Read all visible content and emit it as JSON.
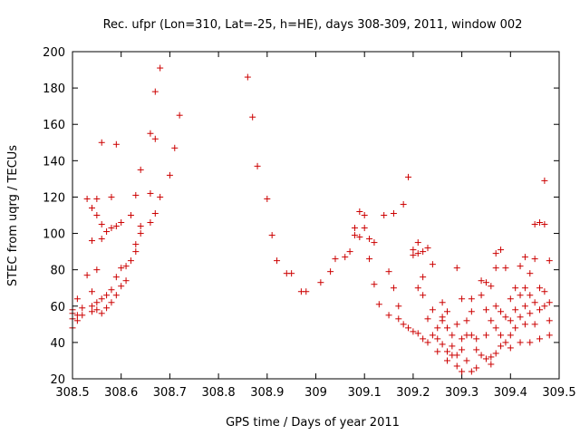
{
  "chart_data": {
    "type": "scatter",
    "title": "Rec. ufpr (Lon=310, Lat=-25, h=HE), days 308-309, 2011, window 002",
    "xlabel": "GPS time / Days of year 2011",
    "ylabel": "STEC from uqrg / TECUs",
    "xlim": [
      308.5,
      309.5
    ],
    "ylim": [
      20,
      200
    ],
    "xticks": [
      "308.5",
      "308.6",
      "308.7",
      "308.8",
      "308.9",
      "309",
      "309.1",
      "309.2",
      "309.3",
      "309.4",
      "309.5"
    ],
    "yticks": [
      "20",
      "40",
      "60",
      "80",
      "100",
      "120",
      "140",
      "160",
      "180",
      "200"
    ],
    "marker": "+",
    "color": "#cc0000",
    "grid": false,
    "series": [
      {
        "name": "STEC",
        "points": [
          [
            308.5,
            48
          ],
          [
            308.5,
            53
          ],
          [
            308.5,
            56
          ],
          [
            308.5,
            58
          ],
          [
            308.51,
            52
          ],
          [
            308.51,
            55
          ],
          [
            308.51,
            64
          ],
          [
            308.52,
            55
          ],
          [
            308.52,
            59
          ],
          [
            308.53,
            77
          ],
          [
            308.53,
            119
          ],
          [
            308.54,
            57
          ],
          [
            308.54,
            60
          ],
          [
            308.54,
            96
          ],
          [
            308.54,
            114
          ],
          [
            308.54,
            68
          ],
          [
            308.55,
            58
          ],
          [
            308.55,
            62
          ],
          [
            308.55,
            110
          ],
          [
            308.55,
            119
          ],
          [
            308.55,
            80
          ],
          [
            308.56,
            56
          ],
          [
            308.56,
            64
          ],
          [
            308.56,
            105
          ],
          [
            308.56,
            97
          ],
          [
            308.56,
            150
          ],
          [
            308.57,
            59
          ],
          [
            308.57,
            66
          ],
          [
            308.57,
            101
          ],
          [
            308.58,
            62
          ],
          [
            308.58,
            69
          ],
          [
            308.58,
            103
          ],
          [
            308.58,
            120
          ],
          [
            308.59,
            66
          ],
          [
            308.59,
            76
          ],
          [
            308.59,
            104
          ],
          [
            308.59,
            149
          ],
          [
            308.6,
            71
          ],
          [
            308.6,
            81
          ],
          [
            308.6,
            106
          ],
          [
            308.61,
            74
          ],
          [
            308.61,
            82
          ],
          [
            308.62,
            85
          ],
          [
            308.62,
            110
          ],
          [
            308.63,
            90
          ],
          [
            308.63,
            94
          ],
          [
            308.63,
            121
          ],
          [
            308.64,
            100
          ],
          [
            308.64,
            104
          ],
          [
            308.64,
            135
          ],
          [
            308.66,
            106
          ],
          [
            308.66,
            122
          ],
          [
            308.66,
            155
          ],
          [
            308.67,
            111
          ],
          [
            308.67,
            152
          ],
          [
            308.67,
            178
          ],
          [
            308.68,
            120
          ],
          [
            308.68,
            191
          ],
          [
            308.7,
            132
          ],
          [
            308.71,
            147
          ],
          [
            308.72,
            165
          ],
          [
            308.86,
            186
          ],
          [
            308.87,
            164
          ],
          [
            308.88,
            137
          ],
          [
            308.9,
            119
          ],
          [
            308.91,
            99
          ],
          [
            308.92,
            85
          ],
          [
            308.94,
            78
          ],
          [
            308.95,
            78
          ],
          [
            308.97,
            68
          ],
          [
            308.98,
            68
          ],
          [
            309.01,
            73
          ],
          [
            309.03,
            79
          ],
          [
            309.04,
            86
          ],
          [
            309.06,
            87
          ],
          [
            309.07,
            90
          ],
          [
            309.08,
            99
          ],
          [
            309.08,
            103
          ],
          [
            309.09,
            112
          ],
          [
            309.09,
            98
          ],
          [
            309.1,
            103
          ],
          [
            309.1,
            110
          ],
          [
            309.11,
            86
          ],
          [
            309.11,
            97
          ],
          [
            309.12,
            95
          ],
          [
            309.12,
            72
          ],
          [
            309.13,
            61
          ],
          [
            309.14,
            110
          ],
          [
            309.15,
            55
          ],
          [
            309.15,
            79
          ],
          [
            309.16,
            70
          ],
          [
            309.16,
            111
          ],
          [
            309.17,
            53
          ],
          [
            309.17,
            60
          ],
          [
            309.18,
            50
          ],
          [
            309.18,
            116
          ],
          [
            309.19,
            48
          ],
          [
            309.19,
            131
          ],
          [
            309.2,
            46
          ],
          [
            309.2,
            88
          ],
          [
            309.2,
            91
          ],
          [
            309.21,
            95
          ],
          [
            309.21,
            89
          ],
          [
            309.21,
            70
          ],
          [
            309.21,
            45
          ],
          [
            309.22,
            76
          ],
          [
            309.22,
            90
          ],
          [
            309.22,
            42
          ],
          [
            309.22,
            66
          ],
          [
            309.23,
            92
          ],
          [
            309.23,
            53
          ],
          [
            309.23,
            40
          ],
          [
            309.24,
            58
          ],
          [
            309.24,
            83
          ],
          [
            309.24,
            44
          ],
          [
            309.25,
            48
          ],
          [
            309.25,
            42
          ],
          [
            309.25,
            35
          ],
          [
            309.26,
            54
          ],
          [
            309.26,
            52
          ],
          [
            309.26,
            62
          ],
          [
            309.26,
            39
          ],
          [
            309.27,
            57
          ],
          [
            309.27,
            48
          ],
          [
            309.27,
            35
          ],
          [
            309.27,
            30
          ],
          [
            309.28,
            44
          ],
          [
            309.28,
            38
          ],
          [
            309.28,
            33
          ],
          [
            309.29,
            81
          ],
          [
            309.29,
            50
          ],
          [
            309.29,
            33
          ],
          [
            309.29,
            27
          ],
          [
            309.3,
            64
          ],
          [
            309.3,
            42
          ],
          [
            309.3,
            36
          ],
          [
            309.3,
            24
          ],
          [
            309.31,
            52
          ],
          [
            309.31,
            44
          ],
          [
            309.31,
            30
          ],
          [
            309.32,
            64
          ],
          [
            309.32,
            57
          ],
          [
            309.32,
            44
          ],
          [
            309.32,
            24
          ],
          [
            309.33,
            42
          ],
          [
            309.33,
            36
          ],
          [
            309.33,
            26
          ],
          [
            309.34,
            74
          ],
          [
            309.34,
            66
          ],
          [
            309.34,
            33
          ],
          [
            309.35,
            73
          ],
          [
            309.35,
            58
          ],
          [
            309.35,
            44
          ],
          [
            309.35,
            31
          ],
          [
            309.36,
            71
          ],
          [
            309.36,
            52
          ],
          [
            309.36,
            32
          ],
          [
            309.36,
            28
          ],
          [
            309.37,
            89
          ],
          [
            309.37,
            81
          ],
          [
            309.37,
            60
          ],
          [
            309.37,
            48
          ],
          [
            309.37,
            34
          ],
          [
            309.38,
            91
          ],
          [
            309.38,
            57
          ],
          [
            309.38,
            44
          ],
          [
            309.38,
            38
          ],
          [
            309.39,
            81
          ],
          [
            309.39,
            54
          ],
          [
            309.39,
            40
          ],
          [
            309.4,
            64
          ],
          [
            309.4,
            52
          ],
          [
            309.4,
            44
          ],
          [
            309.4,
            37
          ],
          [
            309.41,
            70
          ],
          [
            309.41,
            58
          ],
          [
            309.41,
            48
          ],
          [
            309.42,
            82
          ],
          [
            309.42,
            66
          ],
          [
            309.42,
            54
          ],
          [
            309.42,
            40
          ],
          [
            309.43,
            87
          ],
          [
            309.43,
            70
          ],
          [
            309.43,
            60
          ],
          [
            309.43,
            50
          ],
          [
            309.44,
            78
          ],
          [
            309.44,
            66
          ],
          [
            309.44,
            56
          ],
          [
            309.44,
            40
          ],
          [
            309.45,
            105
          ],
          [
            309.45,
            86
          ],
          [
            309.45,
            62
          ],
          [
            309.45,
            50
          ],
          [
            309.46,
            106
          ],
          [
            309.46,
            70
          ],
          [
            309.46,
            58
          ],
          [
            309.46,
            42
          ],
          [
            309.47,
            129
          ],
          [
            309.47,
            105
          ],
          [
            309.47,
            68
          ],
          [
            309.47,
            60
          ],
          [
            309.48,
            85
          ],
          [
            309.48,
            62
          ],
          [
            309.48,
            52
          ],
          [
            309.48,
            44
          ]
        ]
      }
    ]
  }
}
